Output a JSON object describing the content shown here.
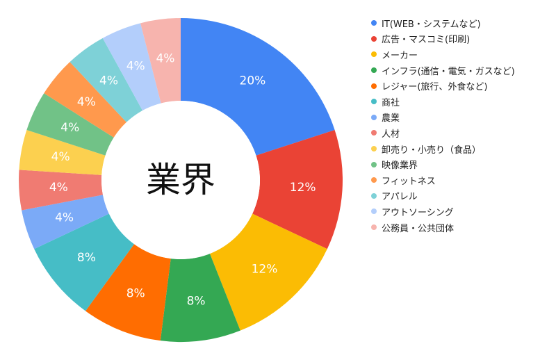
{
  "chart_data": {
    "type": "pie",
    "style": "donut",
    "title": "業界",
    "slices": [
      {
        "label": "IT(WEB・システムなど)",
        "value": 20,
        "display": "20%",
        "color": "#4285f4"
      },
      {
        "label": "広告・マスコミ(印刷)",
        "value": 12,
        "display": "12%",
        "color": "#ea4335"
      },
      {
        "label": "メーカー",
        "value": 12,
        "display": "12%",
        "color": "#fbbc04"
      },
      {
        "label": "インフラ(通信・電気・ガスなど)",
        "value": 8,
        "display": "8%",
        "color": "#34a853"
      },
      {
        "label": "レジャー(旅行、外食など)",
        "value": 8,
        "display": "8%",
        "color": "#ff6d01"
      },
      {
        "label": "商社",
        "value": 8,
        "display": "8%",
        "color": "#46bdc6"
      },
      {
        "label": "農業",
        "value": 4,
        "display": "4%",
        "color": "#7baaf7"
      },
      {
        "label": "人材",
        "value": 4,
        "display": "4%",
        "color": "#f07b72"
      },
      {
        "label": "卸売り・小売り（食品）",
        "value": 4,
        "display": "4%",
        "color": "#fcd04f"
      },
      {
        "label": "映像業界",
        "value": 4,
        "display": "4%",
        "color": "#71c287"
      },
      {
        "label": "フィットネス",
        "value": 4,
        "display": "4%",
        "color": "#ff994d"
      },
      {
        "label": "アパレル",
        "value": 4,
        "display": "4%",
        "color": "#7ed1d7"
      },
      {
        "label": "アウトソーシング",
        "value": 4,
        "display": "4%",
        "color": "#b3cefb"
      },
      {
        "label": "公務員・公共団体",
        "value": 4,
        "display": "4%",
        "color": "#f7b4ae"
      }
    ],
    "legend_position": "right"
  }
}
